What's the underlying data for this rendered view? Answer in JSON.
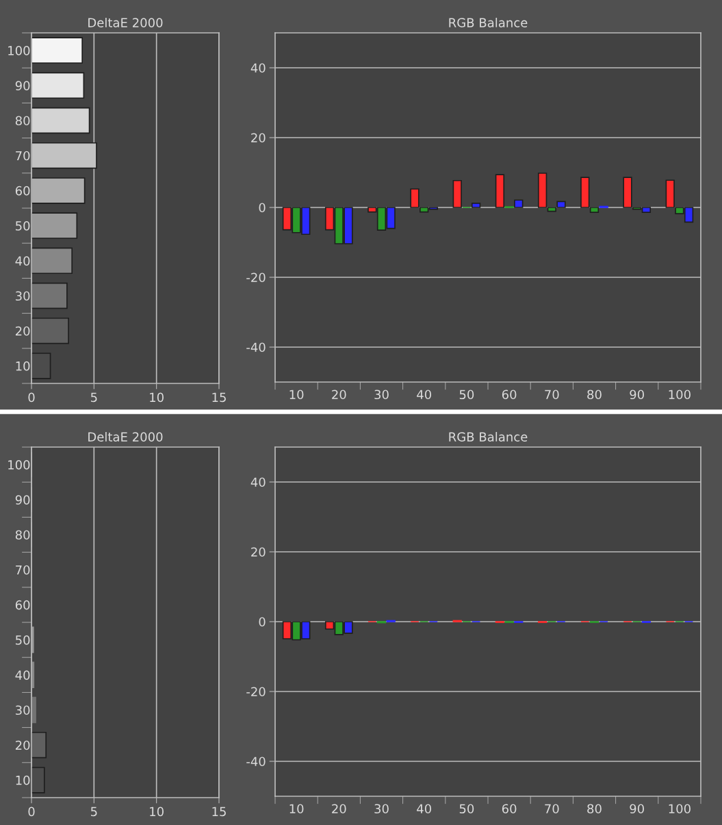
{
  "chart_data": [
    {
      "type": "bar",
      "title": "DeltaE 2000",
      "orientation": "horizontal",
      "categories": [
        "100",
        "90",
        "80",
        "70",
        "60",
        "50",
        "40",
        "30",
        "20",
        "10"
      ],
      "values": [
        4.06,
        4.18,
        4.63,
        5.2,
        4.25,
        3.63,
        3.24,
        2.84,
        2.96,
        1.51
      ],
      "colors": [
        "#f4f4f4",
        "#e6e6e6",
        "#d4d4d4",
        "#c2c2c2",
        "#adadad",
        "#9a9a9a",
        "#878787",
        "#737373",
        "#606060",
        "#4c4c4c"
      ],
      "xlim": [
        0,
        15
      ],
      "xticks": [
        0,
        5,
        10,
        15
      ],
      "grid": "x"
    },
    {
      "type": "bar",
      "title": "RGB Balance",
      "categories": [
        "10",
        "20",
        "30",
        "40",
        "50",
        "60",
        "70",
        "80",
        "90",
        "100"
      ],
      "series": [
        {
          "color": "#ff2a2a",
          "values": [
            -6.4,
            -6.4,
            -1.3,
            5.3,
            7.7,
            9.4,
            9.8,
            8.6,
            8.6,
            7.8
          ]
        },
        {
          "color": "#2a9a2a",
          "values": [
            -7.2,
            -10.4,
            -6.5,
            -1.3,
            0,
            0.2,
            -1.1,
            -1.4,
            -0.5,
            -1.8
          ]
        },
        {
          "color": "#2a2aff",
          "values": [
            -7.7,
            -10.4,
            -6.0,
            -0.5,
            1.2,
            2.1,
            1.7,
            0.3,
            -1.4,
            -4.2
          ]
        }
      ],
      "ylim": [
        -50,
        50
      ],
      "yticks": [
        -40,
        -20,
        0,
        20,
        40
      ],
      "grid": "y"
    },
    {
      "type": "bar",
      "title": "DeltaE 2000",
      "orientation": "horizontal",
      "categories": [
        "100",
        "90",
        "80",
        "70",
        "60",
        "50",
        "40",
        "30",
        "20",
        "10"
      ],
      "values": [
        0,
        0,
        0,
        0,
        0,
        0.15,
        0.18,
        0.33,
        1.16,
        1.03
      ],
      "colors": [
        "#f4f4f4",
        "#e6e6e6",
        "#d4d4d4",
        "#c2c2c2",
        "#adadad",
        "#9a9a9a",
        "#878787",
        "#737373",
        "#606060",
        "#4c4c4c"
      ],
      "xlim": [
        0,
        15
      ],
      "xticks": [
        0,
        5,
        10,
        15
      ],
      "grid": "x"
    },
    {
      "type": "bar",
      "title": "RGB Balance",
      "categories": [
        "10",
        "20",
        "30",
        "40",
        "50",
        "60",
        "70",
        "80",
        "90",
        "100"
      ],
      "series": [
        {
          "color": "#ff2a2a",
          "values": [
            -4.9,
            -2.1,
            0,
            0,
            0.3,
            -0.2,
            -0.2,
            0,
            0,
            0
          ]
        },
        {
          "color": "#2a9a2a",
          "values": [
            -5.2,
            -3.7,
            -0.3,
            0,
            0,
            -0.2,
            0,
            -0.2,
            0,
            0
          ]
        },
        {
          "color": "#2a2aff",
          "values": [
            -4.9,
            -3.3,
            0.3,
            0,
            0,
            -0.2,
            0,
            0,
            -0.2,
            0
          ]
        }
      ],
      "ylim": [
        -50,
        50
      ],
      "yticks": [
        -40,
        -20,
        0,
        20,
        40
      ],
      "grid": "y"
    }
  ]
}
